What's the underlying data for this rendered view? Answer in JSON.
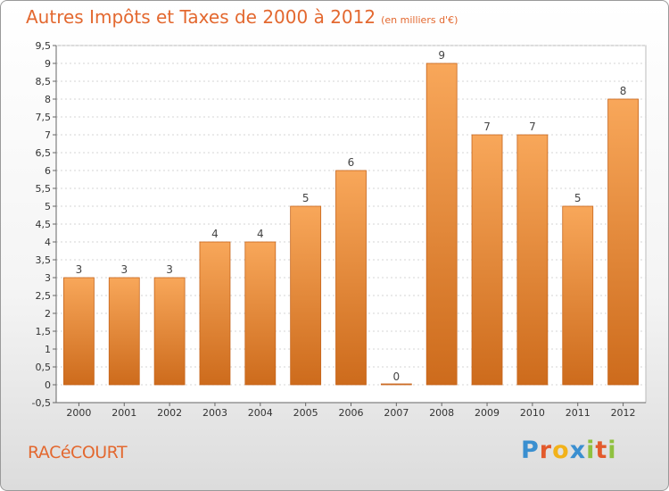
{
  "chart_data": {
    "type": "bar",
    "title": "Autres Impôts et Taxes de 2000 à 2012",
    "subtitle": "(en milliers d'€)",
    "categories": [
      "2000",
      "2001",
      "2002",
      "2003",
      "2004",
      "2005",
      "2006",
      "2007",
      "2008",
      "2009",
      "2010",
      "2011",
      "2012"
    ],
    "values": [
      3,
      3,
      3,
      4,
      4,
      5,
      6,
      0,
      9,
      7,
      7,
      5,
      8
    ],
    "ylim": [
      -0.5,
      9.5
    ],
    "yticks": [
      "-0,5",
      "0",
      "0,5",
      "1",
      "1,5",
      "2",
      "2,5",
      "3",
      "3,5",
      "4",
      "4,5",
      "5",
      "5,5",
      "6",
      "6,5",
      "7",
      "7,5",
      "8",
      "8,5",
      "9",
      "9,5"
    ],
    "ytick_values": [
      -0.5,
      0,
      0.5,
      1,
      1.5,
      2,
      2.5,
      3,
      3.5,
      4,
      4.5,
      5,
      5.5,
      6,
      6.5,
      7,
      7.5,
      8,
      8.5,
      9,
      9.5
    ],
    "grid": true,
    "bar_color": "#f0943e"
  },
  "commune": "RACéCOURT",
  "logo": {
    "letters": [
      "P",
      "r",
      "o",
      "x",
      "i",
      "t",
      "i"
    ]
  }
}
